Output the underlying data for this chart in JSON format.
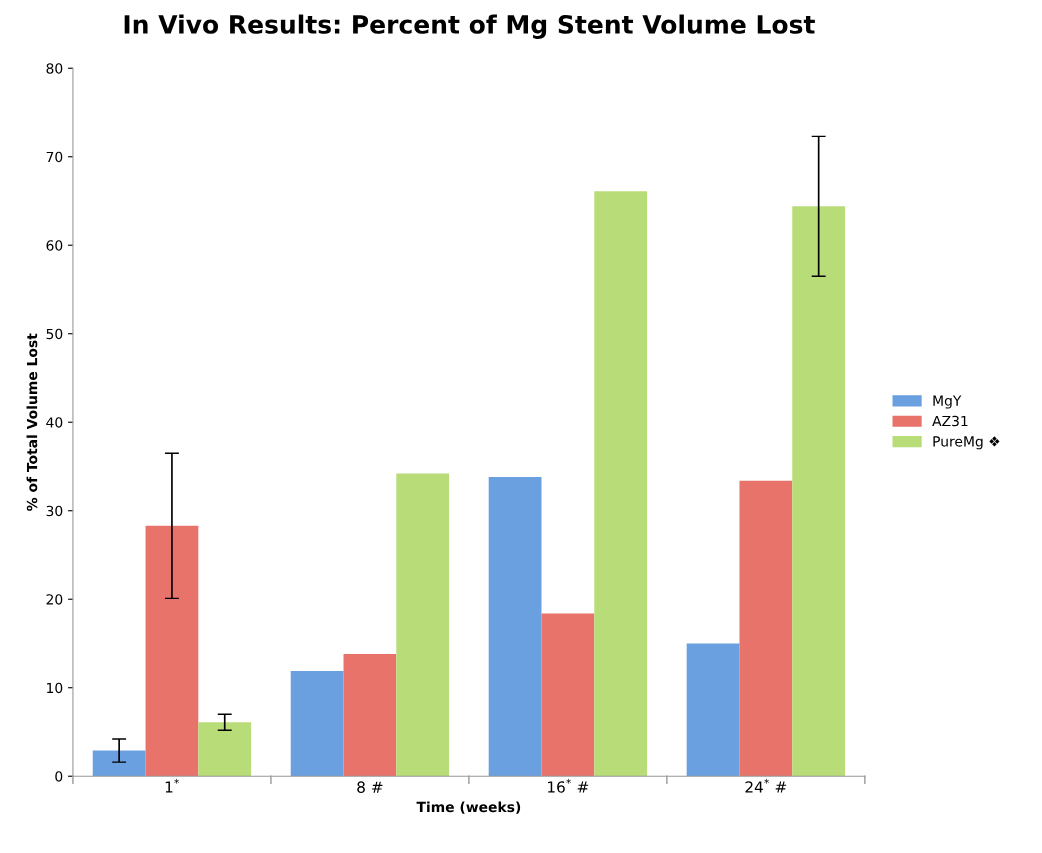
{
  "chart_data": {
    "type": "bar",
    "title": "In Vivo Results: Percent of Mg Stent Volume Lost",
    "xlabel": "Time (weeks)",
    "ylabel": "% of Total Volume Lost",
    "categories": [
      "1$^{*}$",
      "8 #",
      "16$^{*}$ #",
      "24$^{*}$ #"
    ],
    "series": [
      {
        "name": "MgY",
        "color": "#6a9fe0",
        "values": [
          2.9,
          11.9,
          33.8,
          15.0
        ],
        "errors": [
          1.3,
          null,
          null,
          null
        ]
      },
      {
        "name": "AZ31",
        "color": "#e8736b",
        "values": [
          28.3,
          13.8,
          18.4,
          33.4
        ],
        "errors": [
          8.2,
          null,
          null,
          null
        ]
      },
      {
        "name": "PureMg ❖",
        "color": "#b8dc78",
        "values": [
          6.1,
          34.2,
          66.1,
          64.4
        ],
        "errors": [
          0.9,
          null,
          null,
          7.9
        ]
      }
    ],
    "ylim": [
      0,
      80
    ],
    "yticks": [
      0,
      10,
      20,
      30,
      40,
      50,
      60,
      70,
      80
    ],
    "grid": false,
    "legend": "right"
  }
}
